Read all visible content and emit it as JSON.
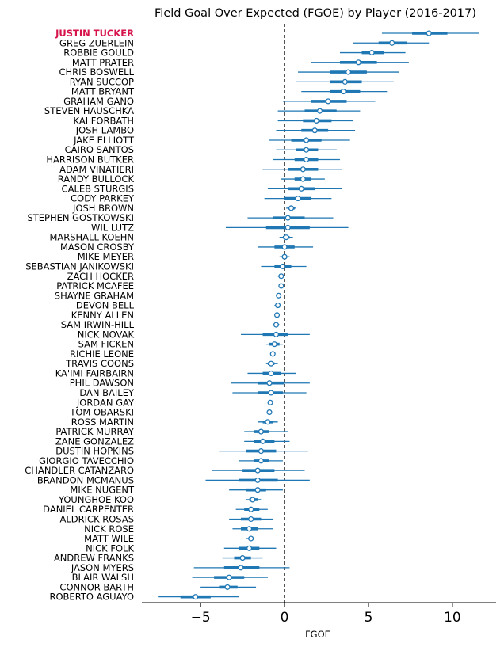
{
  "chart_data": {
    "type": "forest",
    "title": "Field Goal Over Expected (FGOE) by Player (2016-2017)",
    "xlabel": "FGOE",
    "ylabel": "",
    "xlim": [
      -8.5,
      12.6
    ],
    "xticks": [
      -5,
      0,
      5,
      10
    ],
    "xtick_labels": [
      "−5",
      "0",
      "5",
      "10"
    ],
    "reference_line": 0,
    "highlight_player": "JUSTIN TUCKER",
    "colors": {
      "interval": "#1f77b4",
      "marker_fill": "#ffffff",
      "marker_edge": "#1f77b4",
      "highlight_label": "#d6134a",
      "reference": "#000000"
    },
    "players": [
      {
        "name": "JUSTIN TUCKER",
        "mean": 8.6,
        "outer": [
          5.8,
          11.6
        ],
        "inner": [
          7.6,
          9.7
        ]
      },
      {
        "name": "GREG ZUERLEIN",
        "mean": 6.4,
        "outer": [
          4.1,
          8.6
        ],
        "inner": [
          5.6,
          7.3
        ]
      },
      {
        "name": "ROBBIE GOULD",
        "mean": 5.2,
        "outer": [
          3.3,
          7.2
        ],
        "inner": [
          4.6,
          5.9
        ]
      },
      {
        "name": "MATT PRATER",
        "mean": 4.4,
        "outer": [
          1.6,
          7.4
        ],
        "inner": [
          3.3,
          5.5
        ]
      },
      {
        "name": "CHRIS BOSWELL",
        "mean": 3.8,
        "outer": [
          0.8,
          6.8
        ],
        "inner": [
          2.7,
          4.9
        ]
      },
      {
        "name": "RYAN SUCCOP",
        "mean": 3.6,
        "outer": [
          0.7,
          6.5
        ],
        "inner": [
          2.7,
          4.6
        ]
      },
      {
        "name": "MATT BRYANT",
        "mean": 3.5,
        "outer": [
          1.0,
          6.1
        ],
        "inner": [
          2.7,
          4.5
        ]
      },
      {
        "name": "GRAHAM GANO",
        "mean": 2.6,
        "outer": [
          -0.1,
          5.4
        ],
        "inner": [
          1.6,
          3.7
        ]
      },
      {
        "name": "STEVEN HAUSCHKA",
        "mean": 2.1,
        "outer": [
          -0.4,
          4.5
        ],
        "inner": [
          1.2,
          3.1
        ]
      },
      {
        "name": "KAI FORBATH",
        "mean": 1.9,
        "outer": [
          -0.4,
          4.1
        ],
        "inner": [
          1.1,
          2.8
        ]
      },
      {
        "name": "JOSH LAMBO",
        "mean": 1.8,
        "outer": [
          -0.5,
          4.2
        ],
        "inner": [
          1.0,
          2.6
        ]
      },
      {
        "name": "JAKE ELLIOTT",
        "mean": 1.3,
        "outer": [
          -0.9,
          3.9
        ],
        "inner": [
          0.4,
          2.2
        ]
      },
      {
        "name": "CAIRO SANTOS",
        "mean": 1.3,
        "outer": [
          -0.5,
          3.1
        ],
        "inner": [
          0.7,
          2.0
        ]
      },
      {
        "name": "HARRISON BUTKER",
        "mean": 1.3,
        "outer": [
          -0.7,
          3.3
        ],
        "inner": [
          0.6,
          2.0
        ]
      },
      {
        "name": "ADAM VINATIERI",
        "mean": 1.1,
        "outer": [
          -1.3,
          3.4
        ],
        "inner": [
          0.2,
          2.0
        ]
      },
      {
        "name": "RANDY BULLOCK",
        "mean": 1.1,
        "outer": [
          -0.2,
          2.4
        ],
        "inner": [
          0.6,
          1.6
        ]
      },
      {
        "name": "CALEB STURGIS",
        "mean": 1.0,
        "outer": [
          -1.0,
          3.4
        ],
        "inner": [
          0.2,
          1.8
        ]
      },
      {
        "name": "CODY PARKEY",
        "mean": 0.8,
        "outer": [
          -1.2,
          2.8
        ],
        "inner": [
          0.0,
          1.6
        ]
      },
      {
        "name": "JOSH BROWN",
        "mean": 0.4,
        "outer": [
          0.1,
          0.7
        ],
        "inner": [
          0.2,
          0.6
        ]
      },
      {
        "name": "STEPHEN GOSTKOWSKI",
        "mean": 0.2,
        "outer": [
          -2.2,
          2.9
        ],
        "inner": [
          -0.7,
          1.2
        ]
      },
      {
        "name": "WIL LUTZ",
        "mean": 0.2,
        "outer": [
          -3.5,
          3.8
        ],
        "inner": [
          -1.1,
          1.5
        ]
      },
      {
        "name": "MARSHALL KOEHN",
        "mean": 0.1,
        "outer": [
          -0.3,
          0.5
        ],
        "inner": [
          -0.1,
          0.3
        ]
      },
      {
        "name": "MASON CROSBY",
        "mean": 0.0,
        "outer": [
          -1.6,
          1.7
        ],
        "inner": [
          -0.6,
          0.6
        ]
      },
      {
        "name": "MIKE MEYER",
        "mean": 0.0,
        "outer": [
          -0.3,
          0.3
        ],
        "inner": [
          -0.15,
          0.15
        ]
      },
      {
        "name": "SEBASTIAN JANIKOWSKI",
        "mean": -0.1,
        "outer": [
          -1.4,
          1.3
        ],
        "inner": [
          -0.6,
          0.4
        ]
      },
      {
        "name": "ZACH HOCKER",
        "mean": -0.2,
        "outer": [
          -0.4,
          0.0
        ],
        "inner": [
          -0.3,
          -0.1
        ]
      },
      {
        "name": "PATRICK MCAFEE",
        "mean": -0.2,
        "outer": [
          -0.3,
          -0.1
        ],
        "inner": [
          -0.25,
          -0.15
        ]
      },
      {
        "name": "SHAYNE GRAHAM",
        "mean": -0.35,
        "outer": [
          -0.35,
          -0.35
        ],
        "inner": [
          -0.35,
          -0.35
        ]
      },
      {
        "name": "DEVON BELL",
        "mean": -0.4,
        "outer": [
          -0.6,
          -0.2
        ],
        "inner": [
          -0.5,
          -0.3
        ]
      },
      {
        "name": "KENNY ALLEN",
        "mean": -0.45,
        "outer": [
          -0.45,
          -0.45
        ],
        "inner": [
          -0.45,
          -0.45
        ]
      },
      {
        "name": "SAM IRWIN-HILL",
        "mean": -0.5,
        "outer": [
          -0.7,
          -0.3
        ],
        "inner": [
          -0.6,
          -0.4
        ]
      },
      {
        "name": "NICK NOVAK",
        "mean": -0.5,
        "outer": [
          -2.6,
          1.5
        ],
        "inner": [
          -1.3,
          0.2
        ]
      },
      {
        "name": "SAM FICKEN",
        "mean": -0.6,
        "outer": [
          -1.1,
          -0.1
        ],
        "inner": [
          -0.9,
          -0.3
        ]
      },
      {
        "name": "RICHIE LEONE",
        "mean": -0.7,
        "outer": [
          -0.7,
          -0.7
        ],
        "inner": [
          -0.7,
          -0.7
        ]
      },
      {
        "name": "TRAVIS COONS",
        "mean": -0.8,
        "outer": [
          -1.1,
          -0.4
        ],
        "inner": [
          -1.0,
          -0.6
        ]
      },
      {
        "name": "KA'IMI FAIRBAIRN",
        "mean": -0.8,
        "outer": [
          -2.2,
          0.7
        ],
        "inner": [
          -1.3,
          -0.2
        ]
      },
      {
        "name": "PHIL DAWSON",
        "mean": -0.9,
        "outer": [
          -3.2,
          1.5
        ],
        "inner": [
          -1.6,
          0.0
        ]
      },
      {
        "name": "DAN BAILEY",
        "mean": -0.8,
        "outer": [
          -3.1,
          1.3
        ],
        "inner": [
          -1.6,
          -0.1
        ]
      },
      {
        "name": "JORDAN GAY",
        "mean": -0.85,
        "outer": [
          -0.85,
          -0.85
        ],
        "inner": [
          -0.85,
          -0.85
        ]
      },
      {
        "name": "TOM OBARSKI",
        "mean": -0.9,
        "outer": [
          -0.9,
          -0.9
        ],
        "inner": [
          -0.9,
          -0.9
        ]
      },
      {
        "name": "ROSS MARTIN",
        "mean": -1.0,
        "outer": [
          -1.6,
          -0.4
        ],
        "inner": [
          -1.3,
          -0.7
        ]
      },
      {
        "name": "PATRICK MURRAY",
        "mean": -1.4,
        "outer": [
          -2.4,
          0.2
        ],
        "inner": [
          -1.8,
          -0.9
        ]
      },
      {
        "name": "ZANE GONZALEZ",
        "mean": -1.3,
        "outer": [
          -2.4,
          0.3
        ],
        "inner": [
          -1.8,
          -0.6
        ]
      },
      {
        "name": "DUSTIN HOPKINS",
        "mean": -1.4,
        "outer": [
          -3.9,
          1.4
        ],
        "inner": [
          -2.3,
          -0.5
        ]
      },
      {
        "name": "GIORGIO TAVECCHIO",
        "mean": -1.4,
        "outer": [
          -2.7,
          -0.1
        ],
        "inner": [
          -1.8,
          -0.9
        ]
      },
      {
        "name": "CHANDLER CATANZARO",
        "mean": -1.6,
        "outer": [
          -4.3,
          1.2
        ],
        "inner": [
          -2.5,
          -0.6
        ]
      },
      {
        "name": "BRANDON MCMANUS",
        "mean": -1.6,
        "outer": [
          -4.7,
          1.5
        ],
        "inner": [
          -2.7,
          -0.4
        ]
      },
      {
        "name": "MIKE NUGENT",
        "mean": -1.6,
        "outer": [
          -3.3,
          -0.1
        ],
        "inner": [
          -2.3,
          -1.1
        ]
      },
      {
        "name": "YOUNGHOE KOO",
        "mean": -1.9,
        "outer": [
          -2.3,
          -1.4
        ],
        "inner": [
          -2.1,
          -1.6
        ]
      },
      {
        "name": "DANIEL CARPENTER",
        "mean": -2.0,
        "outer": [
          -2.9,
          -1.0
        ],
        "inner": [
          -2.4,
          -1.5
        ]
      },
      {
        "name": "ALDRICK ROSAS",
        "mean": -2.0,
        "outer": [
          -3.3,
          -0.7
        ],
        "inner": [
          -2.6,
          -1.4
        ]
      },
      {
        "name": "NICK ROSE",
        "mean": -2.1,
        "outer": [
          -3.1,
          -0.7
        ],
        "inner": [
          -2.6,
          -1.6
        ]
      },
      {
        "name": "MATT WILE",
        "mean": -2.0,
        "outer": [
          -2.3,
          -1.8
        ],
        "inner": [
          -2.15,
          -1.9
        ]
      },
      {
        "name": "NICK FOLK",
        "mean": -2.1,
        "outer": [
          -3.6,
          -0.5
        ],
        "inner": [
          -2.7,
          -1.5
        ]
      },
      {
        "name": "ANDREW FRANKS",
        "mean": -2.5,
        "outer": [
          -3.7,
          -1.3
        ],
        "inner": [
          -3.0,
          -2.0
        ]
      },
      {
        "name": "JASON MYERS",
        "mean": -2.6,
        "outer": [
          -5.4,
          0.3
        ],
        "inner": [
          -3.6,
          -1.5
        ]
      },
      {
        "name": "BLAIR WALSH",
        "mean": -3.3,
        "outer": [
          -5.5,
          -1.0
        ],
        "inner": [
          -4.2,
          -2.4
        ]
      },
      {
        "name": "CONNOR BARTH",
        "mean": -3.4,
        "outer": [
          -5.0,
          -1.7
        ],
        "inner": [
          -3.9,
          -2.8
        ]
      },
      {
        "name": "ROBERTO AGUAYO",
        "mean": -5.3,
        "outer": [
          -7.5,
          -2.7
        ],
        "inner": [
          -6.2,
          -4.4
        ]
      }
    ]
  }
}
